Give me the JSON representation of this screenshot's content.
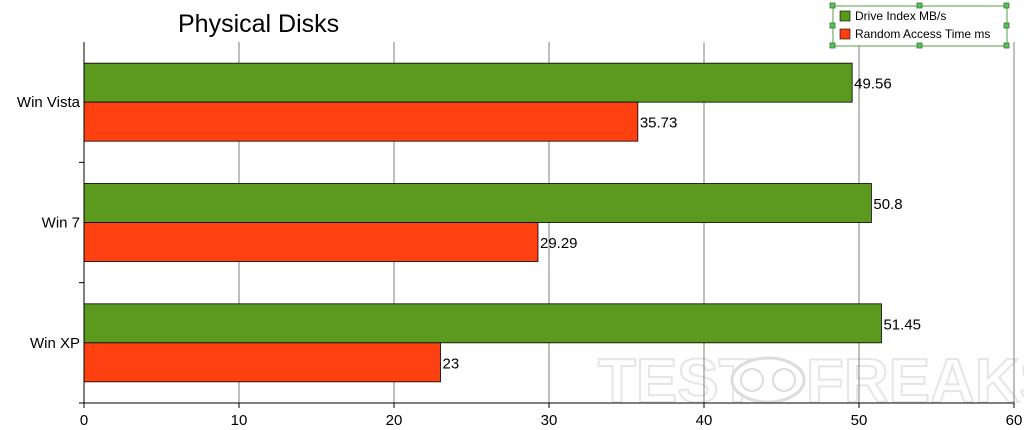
{
  "chart_data": {
    "type": "bar",
    "orientation": "horizontal",
    "title": "Physical Disks",
    "categories": [
      "Win Vista",
      "Win 7",
      "Win XP"
    ],
    "series": [
      {
        "name": "Drive Index MB/s",
        "color": "#5b9a1e",
        "values": [
          49.56,
          50.8,
          51.45
        ]
      },
      {
        "name": "Random Access Time ms",
        "color": "#ff4010",
        "values": [
          35.73,
          29.29,
          23
        ]
      }
    ],
    "value_labels": [
      [
        "49.56",
        "50.8",
        "51.45"
      ],
      [
        "35.73",
        "29.29",
        "23"
      ]
    ],
    "xlim": [
      0,
      60
    ],
    "xticks": [
      0,
      10,
      20,
      30,
      40,
      50,
      60
    ],
    "grid": true,
    "legend": "top-right",
    "watermark": {
      "left": "TEST",
      "right": "FREAKS"
    }
  }
}
